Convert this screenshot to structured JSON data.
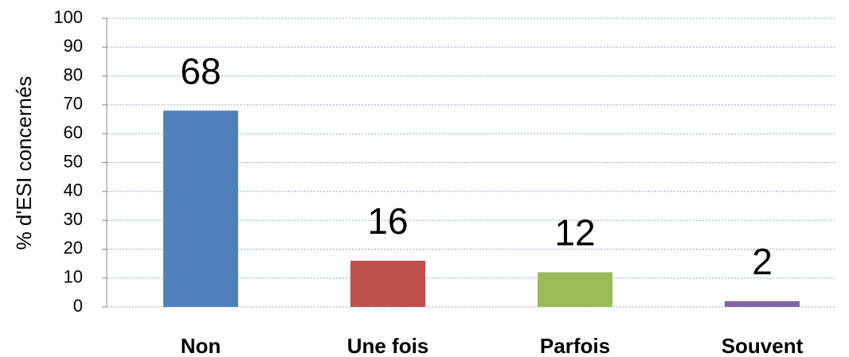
{
  "chart_data": {
    "type": "bar",
    "y_label": "% d'ESI concernés",
    "categories": [
      "Non",
      "Une fois",
      "Parfois",
      "Souvent"
    ],
    "values": [
      68,
      16,
      12,
      2
    ],
    "colors": [
      "#4f81bd",
      "#c0504d",
      "#9bbb59",
      "#8064a2"
    ],
    "ylim": [
      0,
      100
    ],
    "yticks": [
      0,
      10,
      20,
      30,
      40,
      50,
      60,
      70,
      80,
      90,
      100
    ],
    "grid": true
  }
}
